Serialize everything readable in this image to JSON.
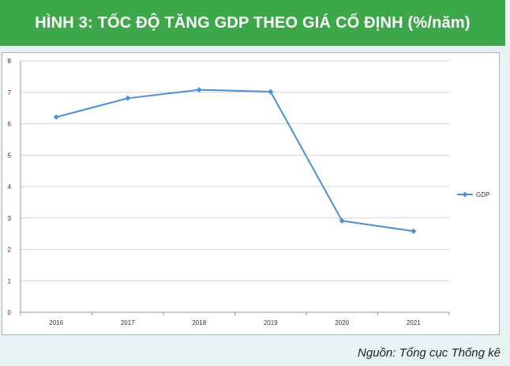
{
  "header": {
    "title": "HÌNH 3: TỐC ĐỘ TĂNG GDP THEO GIÁ CỐ ĐỊNH (%/năm)"
  },
  "footer": {
    "source": "Nguồn: Tổng cục Thống kê"
  },
  "chart_data": {
    "type": "line",
    "categories": [
      "2016",
      "2017",
      "2018",
      "2019",
      "2020",
      "2021"
    ],
    "series": [
      {
        "name": "GDP",
        "values": [
          6.21,
          6.81,
          7.08,
          7.02,
          2.91,
          2.58
        ],
        "color": "#4a90d9"
      }
    ],
    "yticks": [
      "0",
      "1",
      "2",
      "3",
      "4",
      "5",
      "6",
      "7",
      "8"
    ],
    "ylim": [
      0,
      8
    ],
    "grid": true,
    "legend": "right",
    "title": "",
    "xlabel": "",
    "ylabel": ""
  }
}
